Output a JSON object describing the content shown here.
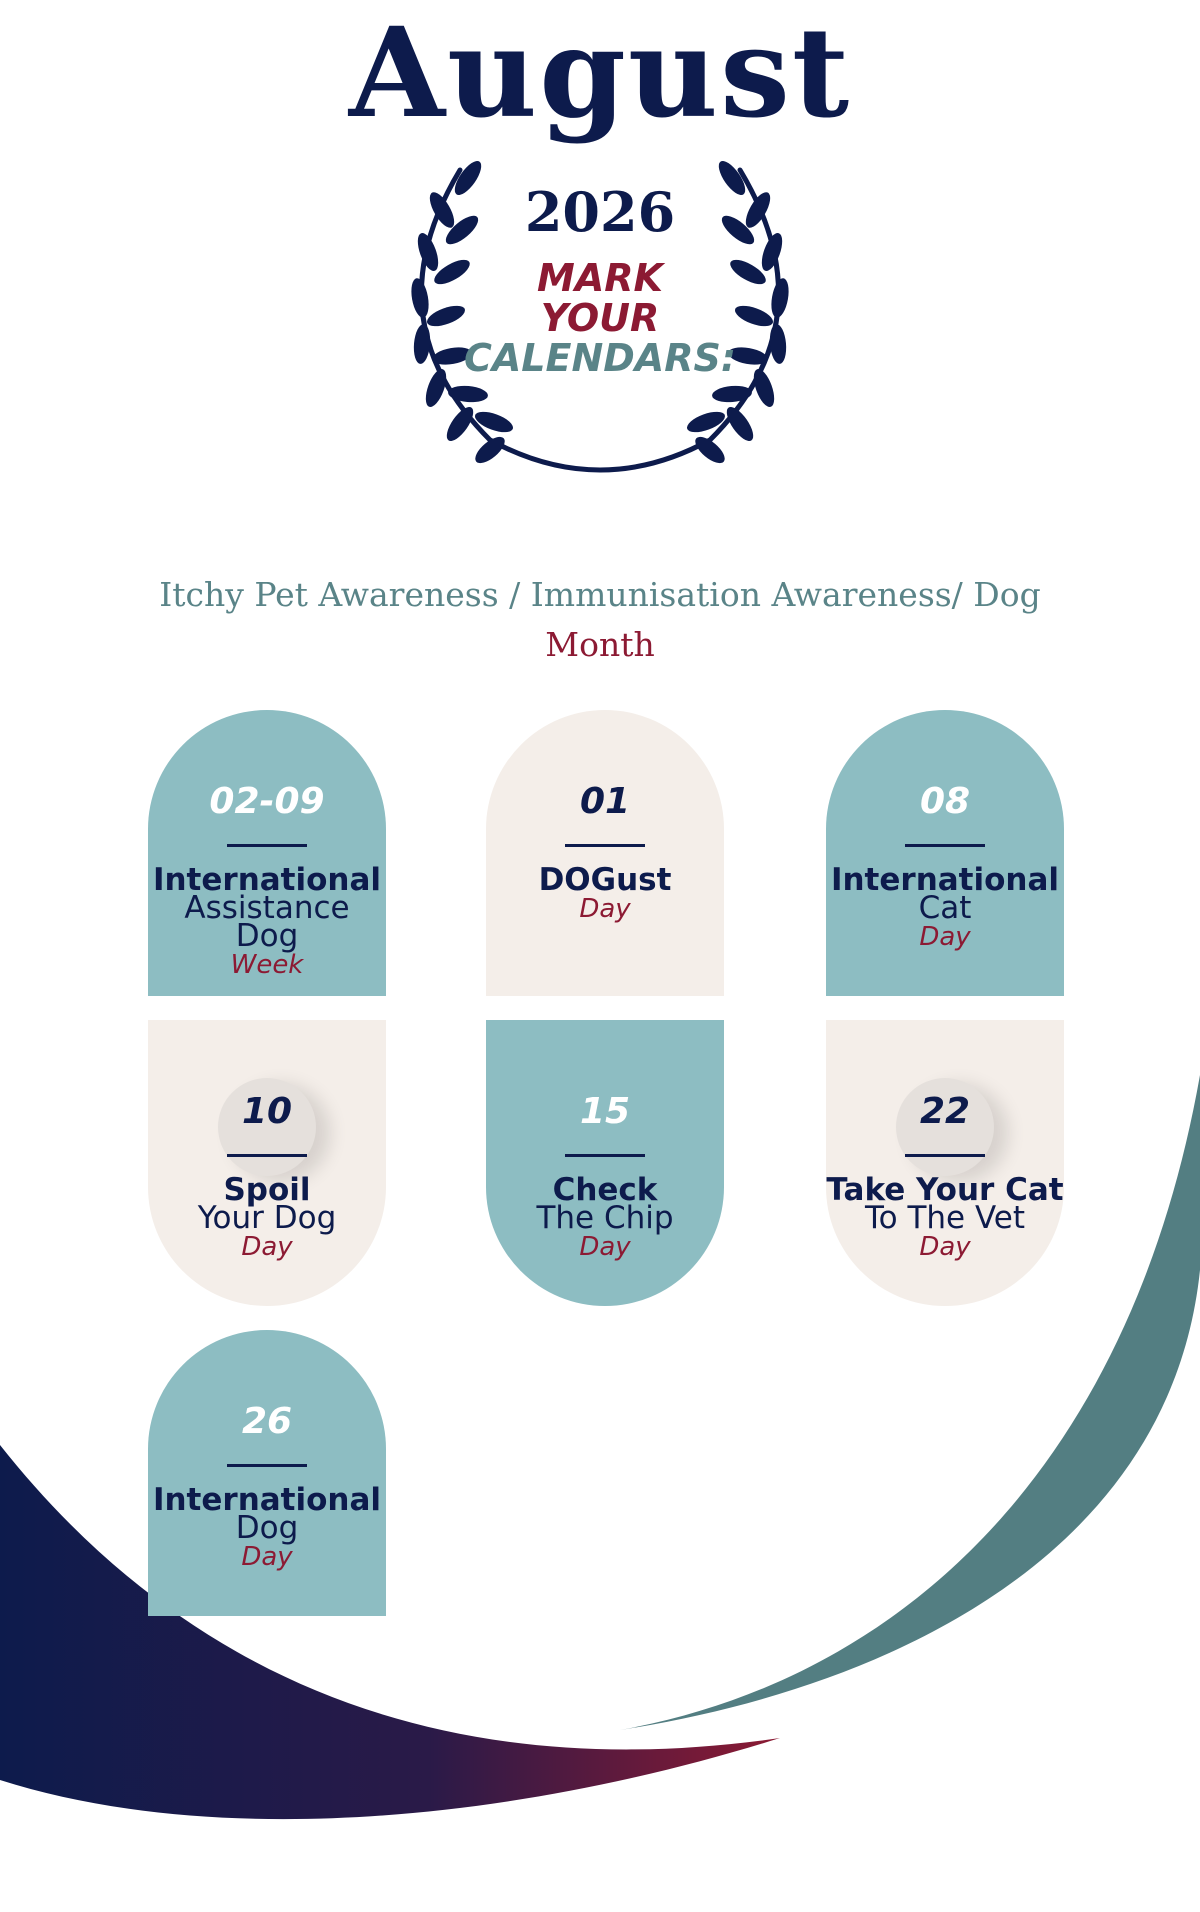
{
  "header": {
    "title": "August",
    "year": "2026",
    "mark_line1": "MARK",
    "mark_line2": "YOUR",
    "mark_line3": "CALENDARS:"
  },
  "theme": {
    "line_a": "Itchy Pet Awareness / Immunisation Awareness/ Dog",
    "line_b": "Month"
  },
  "events": [
    {
      "date": "02-09",
      "line1": "International",
      "line2": "Assistance",
      "line3": "Dog",
      "kind": "Week"
    },
    {
      "date": "01",
      "line1": "DOGust",
      "kind": "Day"
    },
    {
      "date": "08",
      "line1": "International",
      "line2": "Cat",
      "kind": "Day"
    },
    {
      "date": "10",
      "line1": "Spoil",
      "line2": "Your Dog",
      "kind": "Day"
    },
    {
      "date": "15",
      "line1": "Check",
      "line2": "The Chip",
      "kind": "Day"
    },
    {
      "date": "22",
      "line1": "Take Your Cat",
      "line2": "To The Vet",
      "kind": "Day"
    },
    {
      "date": "26",
      "line1": "International",
      "line2": "Dog",
      "kind": "Day"
    }
  ],
  "colors": {
    "navy": "#0d1b4c",
    "teal": "#8dbdc2",
    "dark_teal": "#537e82",
    "beige": "#f4eee9",
    "crimson": "#8c1a33"
  }
}
